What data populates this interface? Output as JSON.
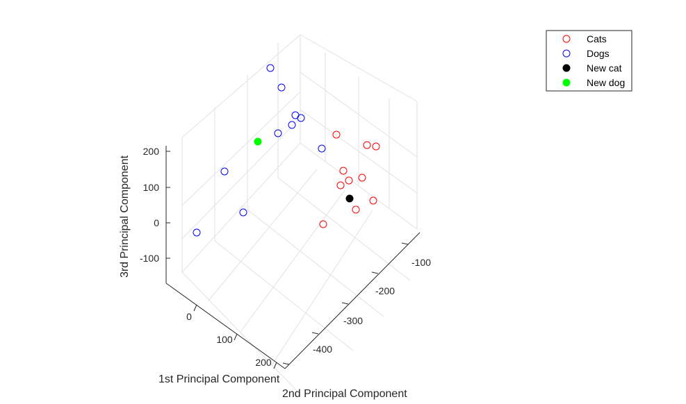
{
  "chart_data": {
    "type": "scatter",
    "axes": {
      "x": {
        "label": "1st Principal Component",
        "ticks": [
          "0",
          "100",
          "200"
        ]
      },
      "y": {
        "label": "2nd Principal Component",
        "ticks": [
          "-100",
          "-200",
          "-300",
          "-400"
        ]
      },
      "z": {
        "label": "3rd Principal Component",
        "ticks": [
          "200",
          "100",
          "0",
          "-100"
        ]
      }
    },
    "grid": true,
    "legend": {
      "placement": "top-right",
      "entries": [
        {
          "label": "Cats",
          "color": "#ff0000",
          "marker": "open-circle"
        },
        {
          "label": "Dogs",
          "color": "#0000ff",
          "marker": "open-circle"
        },
        {
          "label": "New cat",
          "color": "#000000",
          "marker": "filled-circle"
        },
        {
          "label": "New dog",
          "color": "#00ff00",
          "marker": "filled-circle"
        }
      ]
    },
    "series": [
      {
        "name": "Cats",
        "color": "#ff0000",
        "marker": "open-circle",
        "points": [
          [
            484,
            194
          ],
          [
            528,
            209
          ],
          [
            541,
            211
          ],
          [
            494,
            246
          ],
          [
            502,
            260
          ],
          [
            490,
            267
          ],
          [
            521,
            256
          ],
          [
            537,
            289
          ],
          [
            512,
            302
          ],
          [
            465,
            323
          ]
        ]
      },
      {
        "name": "Dogs",
        "color": "#0000ff",
        "marker": "open-circle",
        "points": [
          [
            389,
            98
          ],
          [
            405,
            126
          ],
          [
            425,
            166
          ],
          [
            433,
            170
          ],
          [
            420,
            180
          ],
          [
            400,
            192
          ],
          [
            463,
            214
          ],
          [
            323,
            247
          ],
          [
            350,
            306
          ],
          [
            283,
            335
          ]
        ]
      },
      {
        "name": "New cat",
        "color": "#000000",
        "marker": "filled-circle",
        "points": [
          [
            503,
            286
          ]
        ]
      },
      {
        "name": "New dog",
        "color": "#00ff00",
        "marker": "filled-circle",
        "points": [
          [
            371,
            204
          ]
        ]
      }
    ]
  }
}
